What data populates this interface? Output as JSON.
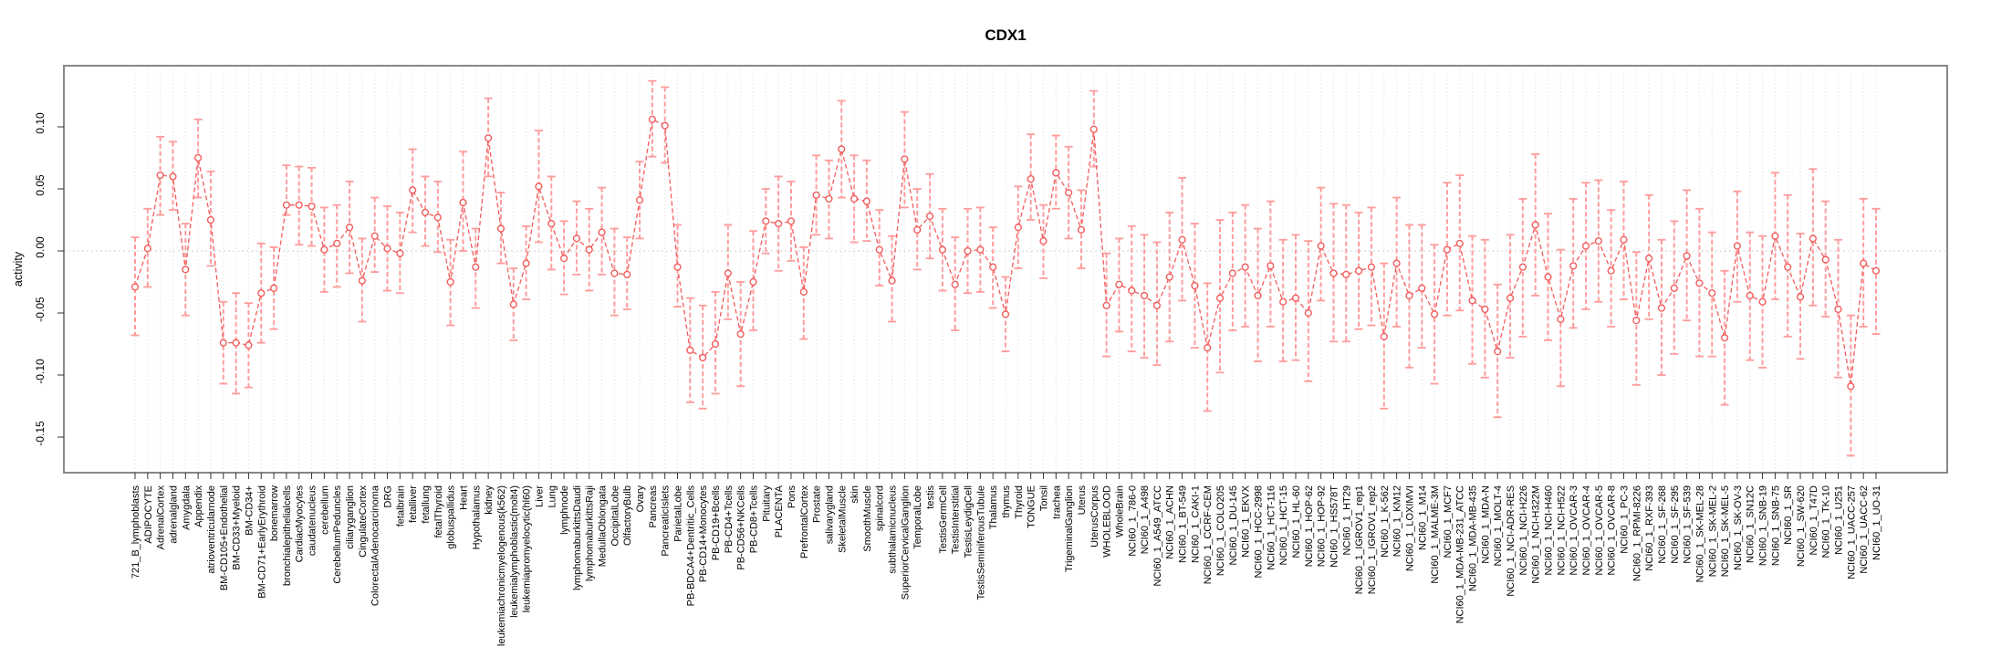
{
  "title": "CDX1",
  "colors": {
    "series": "#f25c5c",
    "error_bar": "#ff9b9b",
    "grid": "#dcdcdc",
    "zero_line": "#cfcfcf",
    "box": "#888888",
    "tick": "#333333"
  },
  "chart_data": {
    "type": "line",
    "title": "CDX1",
    "xlabel": "",
    "ylabel": "activity",
    "ylim": [
      -0.17,
      0.14
    ],
    "yticks": [
      0.1,
      0.05,
      0.0,
      -0.05,
      -0.1,
      -0.15
    ],
    "ytick_labels": [
      "0.10",
      "0.05",
      "0.00",
      "-0.05",
      "-0.10",
      "-0.15"
    ],
    "grid": "vertical dotted gridline at every category; dotted horizontal line at 0",
    "legend_position": "none",
    "marker": "open-circle",
    "error_bars": true,
    "categories": [
      "721_B_lymphoblasts",
      "ADIPOCYTE",
      "AdrenalCortex",
      "adrenalgland",
      "Amygdala",
      "Appendix",
      "atrioventricularnode",
      "BM-CD105+Endothelial",
      "BM-CD33+Myeloid",
      "BM-CD34+",
      "BM-CD71+EarlyErythroid",
      "bonemarrow",
      "bronchialepithelialcells",
      "CardiacMyocytes",
      "caudatenucleus",
      "cerebellum",
      "CerebellumPeduncles",
      "ciliaryganglion",
      "CingulateCortex",
      "ColorectalAdenocarcinoma",
      "DRG",
      "fetalbrain",
      "fetalliver",
      "fetallung",
      "fetalThyroid",
      "globuspallidus",
      "Heart",
      "Hypothalamus",
      "kidney",
      "leukemiachronicmyelogenous(k562)",
      "leukemialymphoblastic(molt4)",
      "leukemiapromyelocytic(hl60)",
      "Liver",
      "Lung",
      "lymphnode",
      "lymphomaburkittsDaudi",
      "lymphomaburkittsRaji",
      "MedullaOblongata",
      "OccipitalLobe",
      "OlfactoryBulb",
      "Ovary",
      "Pancreas",
      "PancreaticIslets",
      "ParietalLobe",
      "PB-BDCA4+Dentritic_Cells",
      "PB-CD14+Monocytes",
      "PB-CD19+Bcells",
      "PB-CD4+Tcells",
      "PB-CD56+NKCells",
      "PB-CD8+Tcells",
      "Pituitary",
      "PLACENTA",
      "Pons",
      "PrefrontalCortex",
      "Prostate",
      "salivarygland",
      "SkeletalMuscle",
      "skin",
      "SmoothMuscle",
      "spinalcord",
      "subthalamicnucleus",
      "SuperiorCervicalGanglion",
      "TemporalLobe",
      "testis",
      "TestisGermCell",
      "TestisInterstitial",
      "TestisLeydigCell",
      "TestisSeminiferousTubule",
      "Thalamus",
      "thymus",
      "Thyroid",
      "TONGUE",
      "Tonsil",
      "trachea",
      "TrigeminalGanglion",
      "Uterus",
      "UterusCorpus",
      "WHOLEBLOOD",
      "WholeBrain",
      "NCI60_1_786-0",
      "NCI60_1_A498",
      "NCI60_1_A549_ATCC",
      "NCI60_1_ACHN",
      "NCI60_1_BT-549",
      "NCI60_1_CAKI-1",
      "NCI60_1_CCRF-CEM",
      "NCI60_1_COLO205",
      "NCI60_1_DU-145",
      "NCI60_1_EKVX",
      "NCI60_1_HCC-2998",
      "NCI60_1_HCT-116",
      "NCI60_1_HCT-15",
      "NCI60_1_HL-60",
      "NCI60_1_HOP-62",
      "NCI60_1_HOP-92",
      "NCI60_1_HS578T",
      "NCI60_1_HT29",
      "NCI60_1_IGROV1_rep1",
      "NCI60_1_IGROV1_rep2",
      "NCI60_1_K-562",
      "NCI60_1_KM12",
      "NCI60_1_LOXIMVI",
      "NCI60_1_M14",
      "NCI60_1_MALME-3M",
      "NCI60_1_MCF7",
      "NCI60_1_MDA-MB-231_ATCC",
      "NCI60_1_MDA-MB-435",
      "NCI60_1_MDA-N",
      "NCI60_1_MOLT-4",
      "NCI60_1_NCI-ADR-RES",
      "NCI60_1_NCI-H226",
      "NCI60_1_NCI-H322M",
      "NCI60_1_NCI-H460",
      "NCI60_1_NCI-H522",
      "NCI60_1_OVCAR-3",
      "NCI60_1_OVCAR-4",
      "NCI60_1_OVCAR-5",
      "NCI60_1_OVCAR-8",
      "NCI60_1_PC-3",
      "NCI60_1_RPMI-8226",
      "NCI60_1_RXF-393",
      "NCI60_1_SF-268",
      "NCI60_1_SF-295",
      "NCI60_1_SF-539",
      "NCI60_1_SK-MEL-28",
      "NCI60_1_SK-MEL-2",
      "NCI60_1_SK-MEL-5",
      "NCI60_1_SK-OV-3",
      "NCI60_1_SN12C",
      "NCI60_1_SNB-19",
      "NCI60_1_SNB-75",
      "NCI60_1_SR",
      "NCI60_1_SW-620",
      "NCI60_1_T47D",
      "NCI60_1_TK-10",
      "NCI60_1_U251",
      "NCI60_1_UACC-257",
      "NCI60_1_UACC-62",
      "NCI60_1_UO-31"
    ],
    "values": [
      -0.029,
      0.002,
      0.061,
      0.06,
      -0.015,
      0.075,
      0.025,
      -0.074,
      -0.074,
      -0.076,
      -0.034,
      -0.03,
      0.037,
      0.037,
      0.036,
      0.001,
      0.006,
      0.019,
      -0.024,
      0.012,
      0.002,
      -0.002,
      0.049,
      0.031,
      0.027,
      -0.025,
      0.039,
      -0.013,
      0.091,
      0.018,
      -0.043,
      -0.01,
      0.052,
      0.022,
      -0.006,
      0.01,
      0.001,
      0.015,
      -0.018,
      -0.019,
      0.041,
      0.106,
      0.101,
      -0.013,
      -0.08,
      -0.086,
      -0.075,
      -0.018,
      -0.067,
      -0.025,
      0.024,
      0.022,
      0.024,
      -0.033,
      0.045,
      0.042,
      0.082,
      0.042,
      0.04,
      0.001,
      -0.024,
      0.074,
      0.017,
      0.028,
      0.001,
      -0.027,
      0.0,
      0.001,
      -0.013,
      -0.051,
      0.019,
      0.058,
      0.008,
      0.063,
      0.047,
      0.017,
      0.098,
      -0.044,
      -0.027,
      -0.032,
      -0.036,
      -0.044,
      -0.021,
      0.009,
      -0.028,
      -0.078,
      -0.038,
      -0.018,
      -0.013,
      -0.036,
      -0.012,
      -0.041,
      -0.038,
      -0.05,
      0.004,
      -0.018,
      -0.019,
      -0.016,
      -0.013,
      -0.069,
      -0.01,
      -0.036,
      -0.03,
      -0.051,
      0.001,
      0.006,
      -0.04,
      -0.047,
      -0.081,
      -0.038,
      -0.013,
      0.021,
      -0.021,
      -0.055,
      -0.012,
      0.004,
      0.008,
      -0.016,
      0.009,
      -0.056,
      -0.006,
      -0.046,
      -0.03,
      -0.004,
      -0.026,
      -0.034,
      -0.07,
      0.004,
      -0.036,
      -0.041,
      0.012,
      -0.013,
      -0.037,
      0.01,
      -0.007,
      -0.047,
      -0.109,
      -0.01,
      -0.016
    ],
    "err_lo": [
      -0.068,
      -0.029,
      0.029,
      0.033,
      -0.052,
      0.043,
      -0.012,
      -0.107,
      -0.115,
      -0.11,
      -0.074,
      -0.063,
      0.029,
      0.005,
      0.004,
      -0.033,
      -0.029,
      -0.018,
      -0.057,
      -0.017,
      -0.032,
      -0.034,
      0.015,
      0.004,
      -0.001,
      -0.06,
      0.0,
      -0.046,
      0.06,
      -0.01,
      -0.072,
      -0.039,
      0.007,
      -0.015,
      -0.035,
      -0.019,
      -0.032,
      -0.019,
      -0.052,
      -0.047,
      0.01,
      0.076,
      0.071,
      -0.045,
      -0.122,
      -0.127,
      -0.115,
      -0.055,
      -0.109,
      -0.064,
      -0.002,
      -0.016,
      -0.008,
      -0.071,
      0.013,
      0.01,
      0.043,
      0.007,
      0.008,
      -0.028,
      -0.057,
      0.035,
      -0.015,
      -0.006,
      -0.032,
      -0.064,
      -0.034,
      -0.033,
      -0.046,
      -0.081,
      -0.014,
      0.025,
      -0.022,
      0.034,
      0.01,
      -0.014,
      0.068,
      -0.085,
      -0.065,
      -0.081,
      -0.086,
      -0.092,
      -0.073,
      -0.04,
      -0.078,
      -0.129,
      -0.098,
      -0.064,
      -0.061,
      -0.089,
      -0.061,
      -0.089,
      -0.088,
      -0.105,
      -0.04,
      -0.073,
      -0.073,
      -0.063,
      -0.06,
      -0.127,
      -0.061,
      -0.094,
      -0.078,
      -0.107,
      -0.052,
      -0.048,
      -0.091,
      -0.102,
      -0.134,
      -0.086,
      -0.069,
      -0.036,
      -0.072,
      -0.109,
      -0.062,
      -0.047,
      -0.041,
      -0.061,
      -0.039,
      -0.108,
      -0.055,
      -0.1,
      -0.083,
      -0.056,
      -0.085,
      -0.085,
      -0.124,
      -0.041,
      -0.088,
      -0.094,
      -0.039,
      -0.069,
      -0.087,
      -0.044,
      -0.053,
      -0.102,
      -0.165,
      -0.061,
      -0.067
    ],
    "err_hi": [
      0.011,
      0.034,
      0.092,
      0.088,
      0.022,
      0.106,
      0.064,
      -0.041,
      -0.034,
      -0.042,
      0.006,
      0.003,
      0.069,
      0.068,
      0.067,
      0.035,
      0.037,
      0.056,
      0.01,
      0.043,
      0.036,
      0.031,
      0.082,
      0.06,
      0.056,
      0.009,
      0.08,
      0.018,
      0.123,
      0.047,
      -0.014,
      0.02,
      0.097,
      0.06,
      0.024,
      0.04,
      0.034,
      0.051,
      0.018,
      0.011,
      0.072,
      0.137,
      0.132,
      0.021,
      -0.038,
      -0.044,
      -0.033,
      0.021,
      -0.025,
      0.016,
      0.05,
      0.06,
      0.056,
      0.003,
      0.077,
      0.073,
      0.121,
      0.077,
      0.073,
      0.033,
      0.012,
      0.112,
      0.05,
      0.062,
      0.034,
      0.011,
      0.034,
      0.035,
      0.019,
      -0.021,
      0.052,
      0.094,
      0.037,
      0.093,
      0.084,
      0.049,
      0.129,
      -0.002,
      0.01,
      0.02,
      0.013,
      0.007,
      0.031,
      0.059,
      0.022,
      -0.026,
      0.025,
      0.031,
      0.037,
      0.018,
      0.04,
      0.009,
      0.013,
      0.008,
      0.051,
      0.038,
      0.037,
      0.031,
      0.035,
      -0.01,
      0.043,
      0.021,
      0.021,
      0.005,
      0.055,
      0.061,
      0.012,
      0.009,
      -0.027,
      0.013,
      0.042,
      0.078,
      0.03,
      0.001,
      0.042,
      0.055,
      0.057,
      0.033,
      0.056,
      -0.001,
      0.045,
      0.009,
      0.024,
      0.049,
      0.034,
      0.015,
      -0.016,
      0.048,
      0.015,
      0.012,
      0.063,
      0.045,
      0.014,
      0.066,
      0.04,
      0.009,
      -0.052,
      0.042,
      0.034
    ]
  }
}
